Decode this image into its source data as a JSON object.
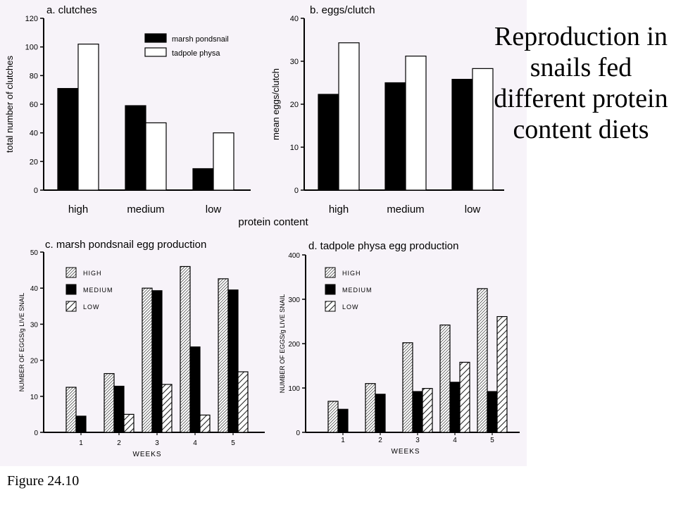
{
  "page_title": "Reproduction in snails fed different protein content diets",
  "figure_caption": "Figure 24.10",
  "shared_xlabel": "protein content",
  "colors": {
    "background": "#f7f3f9",
    "bar_black": "#000000",
    "bar_white": "#ffffff"
  },
  "chart_data": [
    {
      "id": "a",
      "type": "bar",
      "title": "a. clutches",
      "xlabel": "",
      "ylabel": "total number of clutches",
      "ylim": [
        0,
        120
      ],
      "yticks": [
        0,
        20,
        40,
        60,
        80,
        100,
        120
      ],
      "categories": [
        "high",
        "medium",
        "low"
      ],
      "legend_position": "top-right",
      "series": [
        {
          "name": "marsh pondsnail",
          "style": "solid",
          "values": [
            71,
            59,
            15
          ]
        },
        {
          "name": "tadpole physa",
          "style": "open",
          "values": [
            102,
            47,
            40
          ]
        }
      ]
    },
    {
      "id": "b",
      "type": "bar",
      "title": "b. eggs/clutch",
      "xlabel": "",
      "ylabel": "mean eggs/clutch",
      "ylim": [
        0,
        40
      ],
      "yticks": [
        0,
        10,
        20,
        30,
        40
      ],
      "categories": [
        "high",
        "medium",
        "low"
      ],
      "series": [
        {
          "name": "marsh pondsnail",
          "style": "solid",
          "values": [
            22.3,
            25,
            25.8
          ]
        },
        {
          "name": "tadpole physa",
          "style": "open",
          "values": [
            34.3,
            31.2,
            28.3
          ]
        }
      ]
    },
    {
      "id": "c",
      "type": "bar",
      "title": "c. marsh pondsnail egg production",
      "xlabel": "WEEKS",
      "ylabel": "NUMBER OF EGGS/g LIVE SNAIL",
      "ylim": [
        0,
        50
      ],
      "yticks": [
        0,
        10,
        20,
        30,
        40,
        50
      ],
      "categories": [
        "1",
        "2",
        "3",
        "4",
        "5"
      ],
      "legend_position": "top-left",
      "series": [
        {
          "name": "HIGH",
          "style": "dense-hatch",
          "values": [
            12.5,
            16.3,
            40,
            46,
            42.6
          ]
        },
        {
          "name": "MEDIUM",
          "style": "solid",
          "values": [
            4.5,
            12.8,
            39.3,
            23.7,
            39.5
          ]
        },
        {
          "name": "LOW",
          "style": "wide-hatch",
          "values": [
            null,
            5,
            13.3,
            4.8,
            16.8
          ]
        }
      ]
    },
    {
      "id": "d",
      "type": "bar",
      "title": "d. tadpole physa egg production",
      "xlabel": "WEEKS",
      "ylabel": "NUMBER OF EGGS/g LIVE SNAIL",
      "ylim": [
        0,
        400
      ],
      "yticks": [
        0,
        100,
        200,
        300,
        400
      ],
      "categories": [
        "1",
        "2",
        "3",
        "4",
        "5"
      ],
      "legend_position": "top-left",
      "series": [
        {
          "name": "HIGH",
          "style": "dense-hatch",
          "values": [
            70,
            110,
            202,
            242,
            324
          ]
        },
        {
          "name": "MEDIUM",
          "style": "solid",
          "values": [
            52,
            86,
            92,
            113,
            92
          ]
        },
        {
          "name": "LOW",
          "style": "wide-hatch",
          "values": [
            null,
            null,
            99,
            158,
            261
          ]
        }
      ]
    }
  ]
}
